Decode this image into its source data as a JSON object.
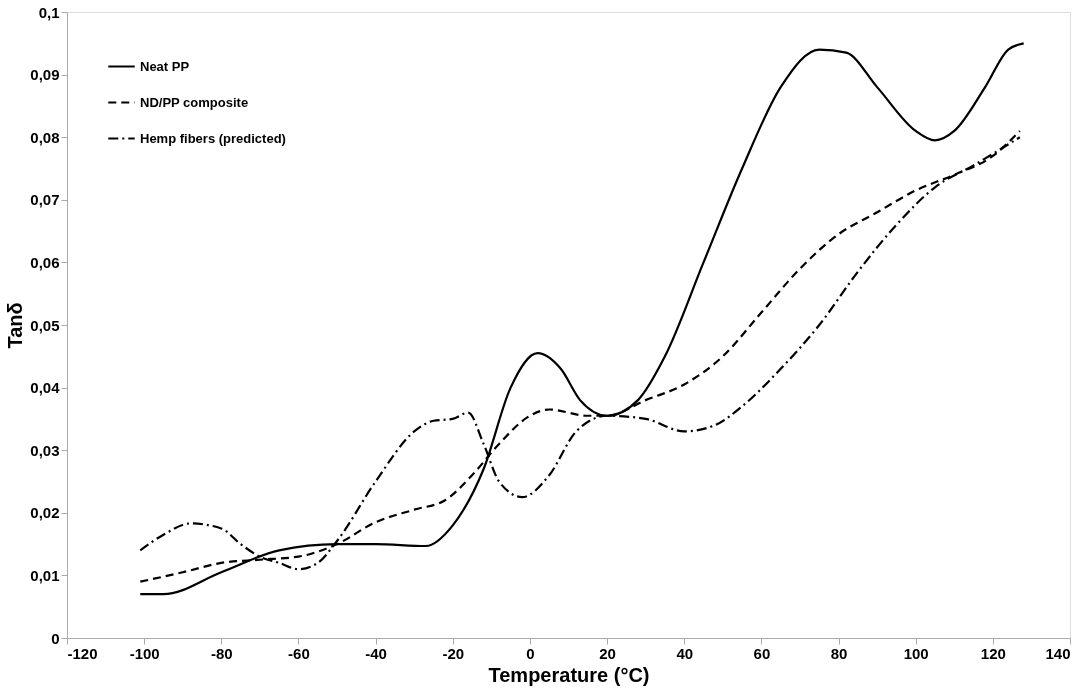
{
  "chart_data": {
    "type": "line",
    "xlabel": "Temperature (°C)",
    "ylabel": "Tanδ",
    "xlim": [
      -120,
      140
    ],
    "xticks": [
      -120,
      -100,
      -80,
      -60,
      -40,
      -20,
      0,
      20,
      40,
      60,
      80,
      100,
      120,
      140
    ],
    "ylim": [
      0,
      0.1
    ],
    "yticks": [
      0,
      {
        "value": 0.01,
        "label": "0,01"
      },
      {
        "value": 0.02,
        "label": "0,02"
      },
      {
        "value": 0.03,
        "label": "0,03"
      },
      {
        "value": 0.04,
        "label": "0,04"
      },
      {
        "value": 0.05,
        "label": "0,05"
      },
      {
        "value": 0.06,
        "label": "0,06"
      },
      {
        "value": 0.07,
        "label": "0,07"
      },
      {
        "value": 0.08,
        "label": "0,08"
      },
      {
        "value": 0.09,
        "label": "0,09"
      },
      {
        "value": 0.1,
        "label": "0,1"
      }
    ],
    "grid": false,
    "legend": "top left",
    "marker": "none",
    "series": [
      {
        "name": "Neat PP",
        "color": "#000000",
        "line_style": "solid",
        "x": [
          -101,
          -95,
          -80,
          -65,
          -50,
          -40,
          -27,
          -20,
          -12,
          -5,
          2,
          8,
          13,
          20,
          28,
          35,
          45,
          55,
          65,
          75,
          82,
          90,
          100,
          105,
          110,
          118,
          124,
          128
        ],
        "values": [
          0.007,
          0.007,
          0.0105,
          0.014,
          0.015,
          0.015,
          0.0147,
          0.018,
          0.027,
          0.04,
          0.0455,
          0.043,
          0.038,
          0.0355,
          0.038,
          0.045,
          0.06,
          0.075,
          0.088,
          0.094,
          0.0935,
          0.088,
          0.081,
          0.0795,
          0.081,
          0.088,
          0.094,
          0.095
        ]
      },
      {
        "name": "ND/PP composite",
        "color": "#000000",
        "line_style": "dashed",
        "x": [
          -101,
          -90,
          -80,
          -70,
          -60,
          -50,
          -40,
          -30,
          -22,
          -15,
          -8,
          0,
          5,
          15,
          20,
          30,
          40,
          50,
          60,
          70,
          80,
          90,
          100,
          110,
          120,
          127
        ],
        "values": [
          0.009,
          0.0105,
          0.012,
          0.0125,
          0.013,
          0.015,
          0.0185,
          0.0205,
          0.022,
          0.026,
          0.031,
          0.0355,
          0.0365,
          0.0355,
          0.0355,
          0.038,
          0.0405,
          0.045,
          0.052,
          0.059,
          0.0645,
          0.068,
          0.0715,
          0.074,
          0.077,
          0.081
        ]
      },
      {
        "name": "Hemp fibers (predicted)",
        "color": "#000000",
        "line_style": "dashdot",
        "x": [
          -101,
          -95,
          -88,
          -80,
          -75,
          -70,
          -65,
          -60,
          -55,
          -50,
          -40,
          -30,
          -25,
          -20,
          -16,
          -12,
          -8,
          -2,
          5,
          12,
          20,
          30,
          40,
          48,
          55,
          65,
          75,
          85,
          95,
          105,
          115,
          127
        ],
        "values": [
          0.014,
          0.0165,
          0.0183,
          0.0175,
          0.015,
          0.013,
          0.012,
          0.011,
          0.012,
          0.0155,
          0.025,
          0.033,
          0.0347,
          0.035,
          0.036,
          0.031,
          0.025,
          0.0225,
          0.026,
          0.033,
          0.0355,
          0.035,
          0.033,
          0.034,
          0.037,
          0.043,
          0.05,
          0.0585,
          0.066,
          0.072,
          0.0755,
          0.08
        ]
      }
    ]
  }
}
